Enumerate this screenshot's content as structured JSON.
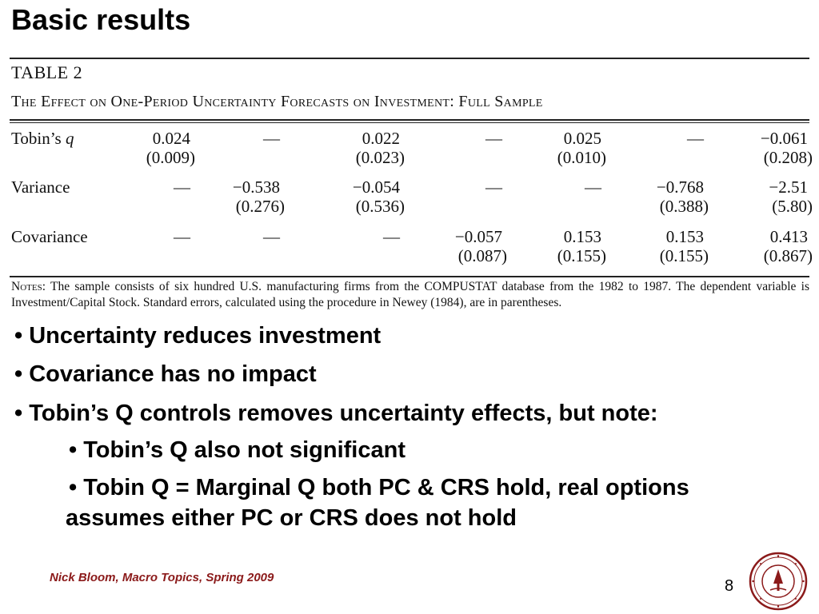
{
  "slide": {
    "title": "Basic results",
    "footer": "Nick Bloom, Macro Topics, Spring 2009",
    "page_number": "8"
  },
  "table": {
    "label": "TABLE 2",
    "caption": "The Effect on One-Period Uncertainty Forecasts on Investment: Full Sample",
    "rows": [
      {
        "label_text": "Tobin’s ",
        "label_italic": "q",
        "coef": [
          "0.024",
          "—",
          "0.022",
          "—",
          "0.025",
          "—",
          "−0.061"
        ],
        "se": [
          "(0.009)",
          "",
          "(0.023)",
          "",
          "(0.010)",
          "",
          "(0.208)"
        ]
      },
      {
        "label_text": "Variance",
        "label_italic": "",
        "coef": [
          "—",
          "−0.538",
          "−0.054",
          "—",
          "—",
          "−0.768",
          "−2.51"
        ],
        "se": [
          "",
          "(0.276)",
          "(0.536)",
          "",
          "",
          "(0.388)",
          "(5.80)"
        ]
      },
      {
        "label_text": "Covariance",
        "label_italic": "",
        "coef": [
          "—",
          "—",
          "—",
          "−0.057",
          "0.153",
          "0.153",
          "0.413"
        ],
        "se": [
          "",
          "",
          "",
          "(0.087)",
          "(0.155)",
          "(0.155)",
          "(0.867)"
        ]
      }
    ],
    "notes_label": "Notes:",
    "notes_text": " The sample consists of six hundred U.S. manufacturing firms from the COMPUSTAT database from the 1982 to 1987. The dependent variable is Investment/Capital Stock. Standard errors, calculated using the procedure in Newey (1984), are in parentheses."
  },
  "bullets": {
    "b1": "• Uncertainty reduces investment",
    "b2": "• Covariance has no impact",
    "b3": "• Tobin’s Q controls removes uncertainty effects, but note:",
    "b4": "•  Tobin’s Q also not significant",
    "b5a": "•  Tobin Q = Marginal Q both PC & CRS hold, real options",
    "b5b": "assumes either PC or CRS does not hold"
  },
  "colors": {
    "footer": "#8b1a1a",
    "seal": "#8b1a1a"
  },
  "icons": {
    "seal": "university-seal-icon"
  }
}
